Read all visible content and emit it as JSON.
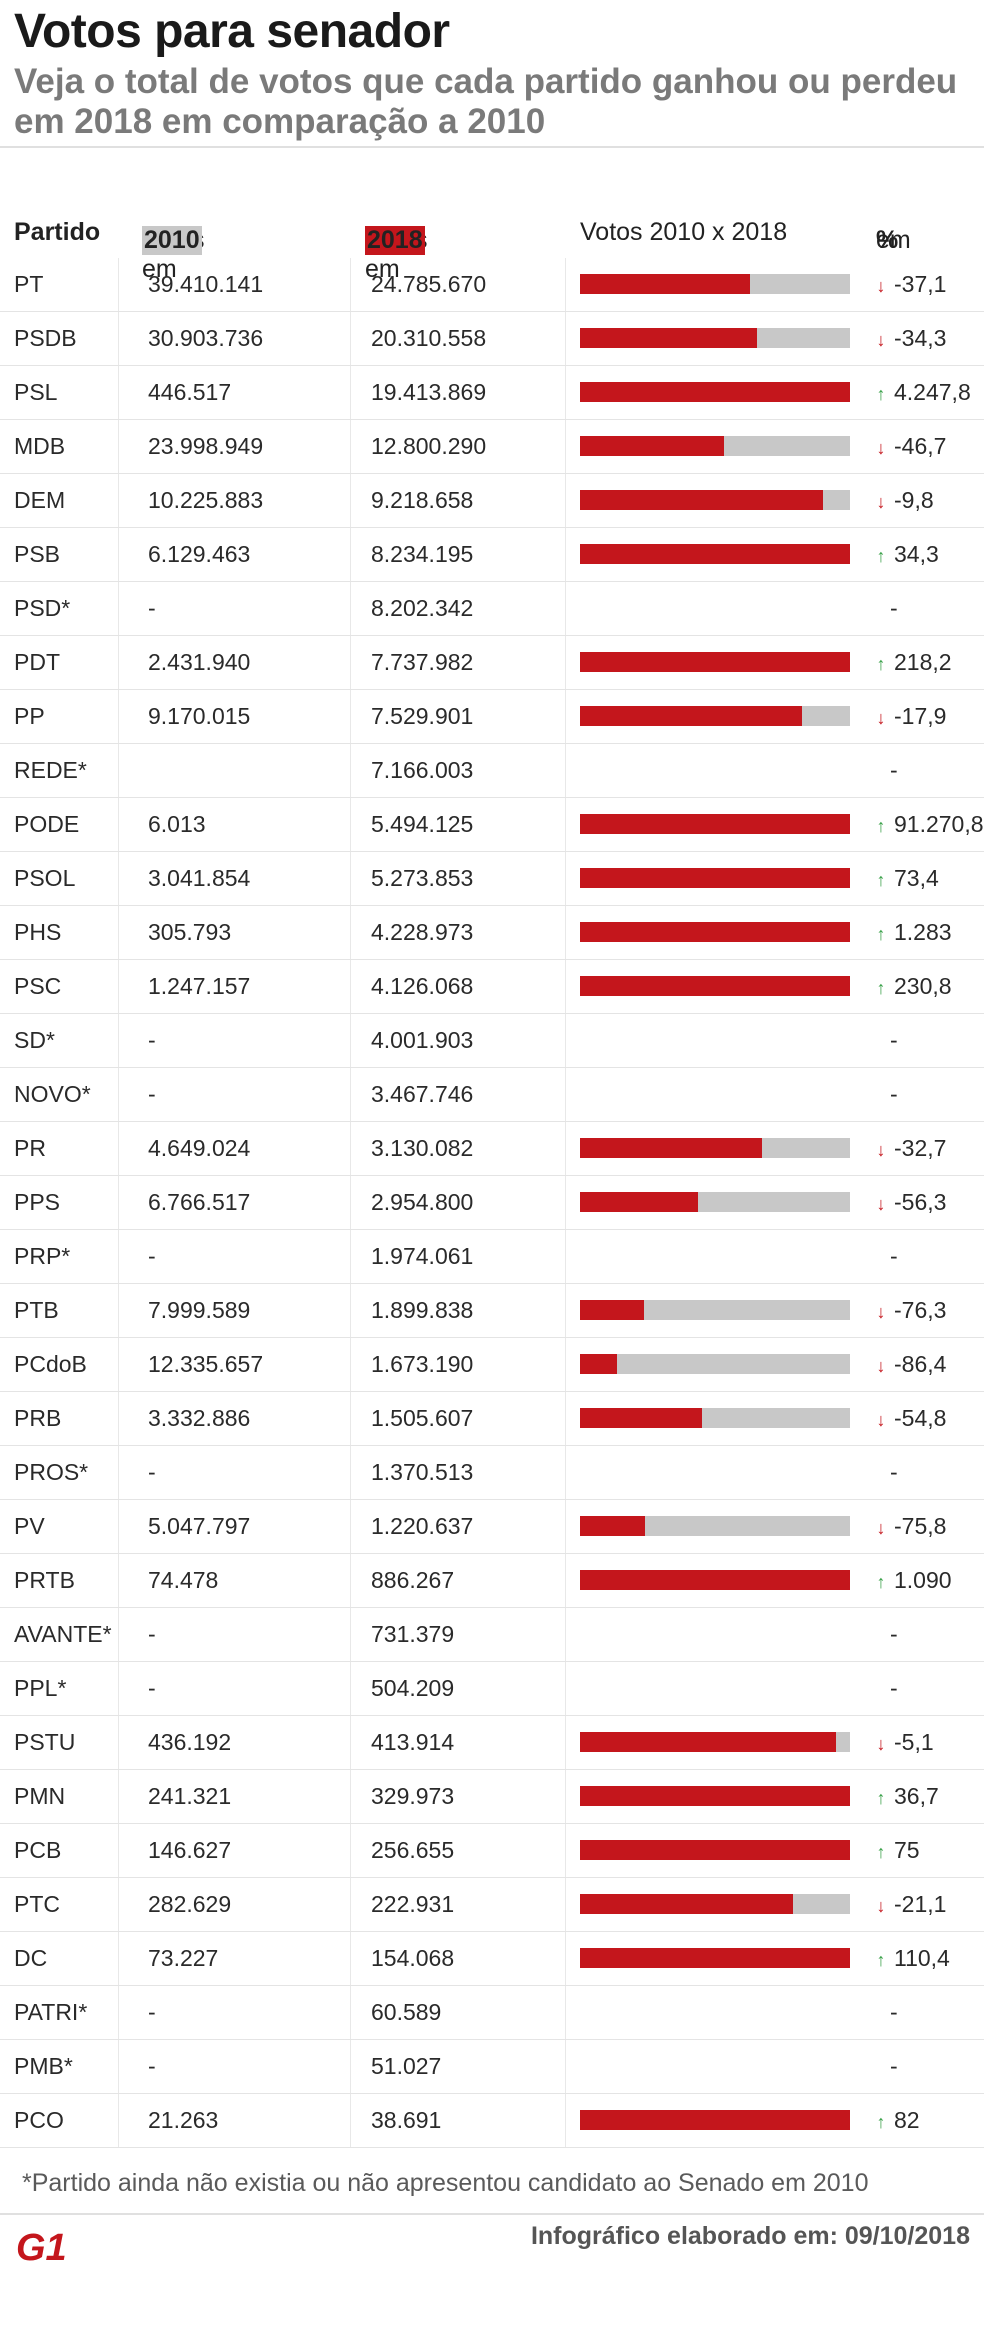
{
  "title": "Votos para senador",
  "subtitle": "Veja o total de votos que cada partido ganhou ou perdeu em 2018 em comparação a 2010",
  "colors": {
    "red": "#c4161c",
    "gray": "#c8c8c8",
    "up": "#3aa14a",
    "down": "#c4161c"
  },
  "header": {
    "partido": "Partido",
    "votos_prefix": "Votos em ",
    "year_2010": "2010",
    "year_2018": "2018",
    "comparison": "Votos 2010 x 2018",
    "pct_prefix": "em ",
    "pct_symbol": "%"
  },
  "footnote": "*Partido ainda não existia ou não apresentou candidato ao Senado em 2010",
  "credit": "Infográfico elaborado em: 09/10/2018",
  "logo_text": "G1",
  "chart_data": {
    "type": "table",
    "columns": [
      "Partido",
      "Votos em 2010",
      "Votos em 2018",
      "Votos 2010 x 2018",
      "em %"
    ],
    "rows": [
      {
        "party": "PT",
        "v2010": "39.410.141",
        "v2018": "24.785.670",
        "n2010": 39410141,
        "n2018": 24785670,
        "pct": "-37,1"
      },
      {
        "party": "PSDB",
        "v2010": "30.903.736",
        "v2018": "20.310.558",
        "n2010": 30903736,
        "n2018": 20310558,
        "pct": "-34,3"
      },
      {
        "party": "PSL",
        "v2010": "446.517",
        "v2018": "19.413.869",
        "n2010": 446517,
        "n2018": 19413869,
        "pct": "4.247,8"
      },
      {
        "party": "MDB",
        "v2010": "23.998.949",
        "v2018": "12.800.290",
        "n2010": 23998949,
        "n2018": 12800290,
        "pct": "-46,7"
      },
      {
        "party": "DEM",
        "v2010": "10.225.883",
        "v2018": "9.218.658",
        "n2010": 10225883,
        "n2018": 9218658,
        "pct": "-9,8"
      },
      {
        "party": "PSB",
        "v2010": "6.129.463",
        "v2018": "8.234.195",
        "n2010": 6129463,
        "n2018": 8234195,
        "pct": "34,3"
      },
      {
        "party": "PSD*",
        "v2010": "-",
        "v2018": "8.202.342",
        "n2010": null,
        "n2018": 8202342,
        "pct": "-"
      },
      {
        "party": "PDT",
        "v2010": "2.431.940",
        "v2018": "7.737.982",
        "n2010": 2431940,
        "n2018": 7737982,
        "pct": "218,2"
      },
      {
        "party": "PP",
        "v2010": "9.170.015",
        "v2018": "7.529.901",
        "n2010": 9170015,
        "n2018": 7529901,
        "pct": "-17,9"
      },
      {
        "party": "REDE*",
        "v2010": "",
        "v2018": "7.166.003",
        "n2010": null,
        "n2018": 7166003,
        "pct": "-"
      },
      {
        "party": "PODE",
        "v2010": "6.013",
        "v2018": "5.494.125",
        "n2010": 6013,
        "n2018": 5494125,
        "pct": "91.270,8"
      },
      {
        "party": "PSOL",
        "v2010": "3.041.854",
        "v2018": "5.273.853",
        "n2010": 3041854,
        "n2018": 5273853,
        "pct": "73,4"
      },
      {
        "party": "PHS",
        "v2010": "305.793",
        "v2018": "4.228.973",
        "n2010": 305793,
        "n2018": 4228973,
        "pct": "1.283"
      },
      {
        "party": "PSC",
        "v2010": "1.247.157",
        "v2018": "4.126.068",
        "n2010": 1247157,
        "n2018": 4126068,
        "pct": "230,8"
      },
      {
        "party": "SD*",
        "v2010": "-",
        "v2018": "4.001.903",
        "n2010": null,
        "n2018": 4001903,
        "pct": "-"
      },
      {
        "party": "NOVO*",
        "v2010": "-",
        "v2018": "3.467.746",
        "n2010": null,
        "n2018": 3467746,
        "pct": "-"
      },
      {
        "party": "PR",
        "v2010": "4.649.024",
        "v2018": "3.130.082",
        "n2010": 4649024,
        "n2018": 3130082,
        "pct": "-32,7"
      },
      {
        "party": "PPS",
        "v2010": "6.766.517",
        "v2018": "2.954.800",
        "n2010": 6766517,
        "n2018": 2954800,
        "pct": "-56,3"
      },
      {
        "party": "PRP*",
        "v2010": "-",
        "v2018": "1.974.061",
        "n2010": null,
        "n2018": 1974061,
        "pct": "-"
      },
      {
        "party": "PTB",
        "v2010": "7.999.589",
        "v2018": "1.899.838",
        "n2010": 7999589,
        "n2018": 1899838,
        "pct": "-76,3"
      },
      {
        "party": "PCdoB",
        "v2010": "12.335.657",
        "v2018": "1.673.190",
        "n2010": 12335657,
        "n2018": 1673190,
        "pct": "-86,4"
      },
      {
        "party": "PRB",
        "v2010": "3.332.886",
        "v2018": "1.505.607",
        "n2010": 3332886,
        "n2018": 1505607,
        "pct": "-54,8"
      },
      {
        "party": "PROS*",
        "v2010": "-",
        "v2018": "1.370.513",
        "n2010": null,
        "n2018": 1370513,
        "pct": "-"
      },
      {
        "party": "PV",
        "v2010": "5.047.797",
        "v2018": "1.220.637",
        "n2010": 5047797,
        "n2018": 1220637,
        "pct": "-75,8"
      },
      {
        "party": "PRTB",
        "v2010": "74.478",
        "v2018": "886.267",
        "n2010": 74478,
        "n2018": 886267,
        "pct": "1.090"
      },
      {
        "party": "AVANTE*",
        "v2010": "-",
        "v2018": "731.379",
        "n2010": null,
        "n2018": 731379,
        "pct": "-"
      },
      {
        "party": "PPL*",
        "v2010": "-",
        "v2018": "504.209",
        "n2010": null,
        "n2018": 504209,
        "pct": "-"
      },
      {
        "party": "PSTU",
        "v2010": "436.192",
        "v2018": "413.914",
        "n2010": 436192,
        "n2018": 413914,
        "pct": "-5,1"
      },
      {
        "party": "PMN",
        "v2010": "241.321",
        "v2018": "329.973",
        "n2010": 241321,
        "n2018": 329973,
        "pct": "36,7"
      },
      {
        "party": "PCB",
        "v2010": "146.627",
        "v2018": "256.655",
        "n2010": 146627,
        "n2018": 256655,
        "pct": "75"
      },
      {
        "party": "PTC",
        "v2010": "282.629",
        "v2018": "222.931",
        "n2010": 282629,
        "n2018": 222931,
        "pct": "-21,1"
      },
      {
        "party": "DC",
        "v2010": "73.227",
        "v2018": "154.068",
        "n2010": 73227,
        "n2018": 154068,
        "pct": "110,4"
      },
      {
        "party": "PATRI*",
        "v2010": "-",
        "v2018": "60.589",
        "n2010": null,
        "n2018": 60589,
        "pct": "-"
      },
      {
        "party": "PMB*",
        "v2010": "-",
        "v2018": "51.027",
        "n2010": null,
        "n2018": 51027,
        "pct": "-"
      },
      {
        "party": "PCO",
        "v2010": "21.263",
        "v2018": "38.691",
        "n2010": 21263,
        "n2018": 38691,
        "pct": "82"
      }
    ]
  }
}
